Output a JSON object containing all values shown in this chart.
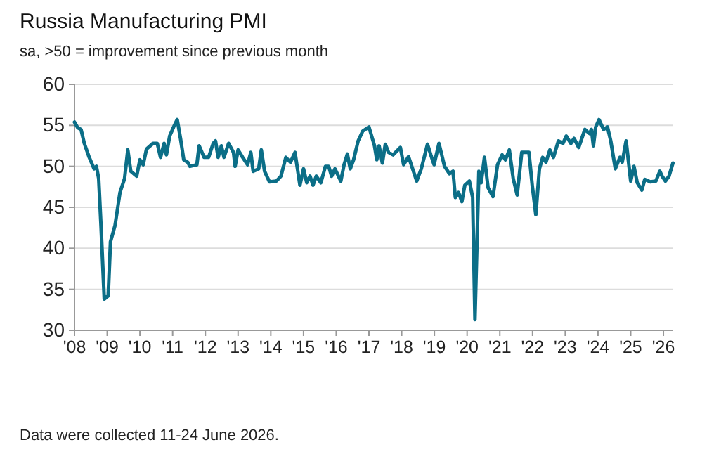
{
  "chart_data": {
    "type": "line",
    "title": "Russia Manufacturing PMI",
    "subtitle": "sa, >50 = improvement since previous month",
    "annotations": [
      "Data were collected 11-24 June 2026."
    ],
    "x": [
      2008.0,
      2008.1,
      2008.2,
      2008.3,
      2008.45,
      2008.6,
      2008.67,
      2008.74,
      2008.81,
      2008.91,
      2009.03,
      2009.1,
      2009.24,
      2009.39,
      2009.53,
      2009.63,
      2009.72,
      2009.9,
      2010.0,
      2010.1,
      2010.2,
      2010.4,
      2010.53,
      2010.63,
      2010.74,
      2010.81,
      2010.91,
      2011.03,
      2011.14,
      2011.24,
      2011.34,
      2011.46,
      2011.53,
      2011.74,
      2011.81,
      2011.96,
      2012.1,
      2012.24,
      2012.31,
      2012.39,
      2012.49,
      2012.57,
      2012.71,
      2012.86,
      2012.91,
      2013.0,
      2013.14,
      2013.29,
      2013.39,
      2013.46,
      2013.63,
      2013.71,
      2013.81,
      2013.96,
      2014.17,
      2014.31,
      2014.46,
      2014.6,
      2014.74,
      2014.89,
      2015.0,
      2015.1,
      2015.2,
      2015.29,
      2015.39,
      2015.53,
      2015.67,
      2015.77,
      2015.86,
      2015.96,
      2016.14,
      2016.24,
      2016.34,
      2016.43,
      2016.53,
      2016.67,
      2016.81,
      2017.0,
      2017.17,
      2017.24,
      2017.31,
      2017.41,
      2017.5,
      2017.6,
      2017.74,
      2017.96,
      2018.06,
      2018.21,
      2018.31,
      2018.46,
      2018.6,
      2018.79,
      2018.89,
      2018.99,
      2019.14,
      2019.31,
      2019.46,
      2019.57,
      2019.64,
      2019.74,
      2019.84,
      2019.93,
      2020.07,
      2020.17,
      2020.24,
      2020.36,
      2020.43,
      2020.53,
      2020.64,
      2020.79,
      2020.93,
      2021.07,
      2021.17,
      2021.29,
      2021.41,
      2021.53,
      2021.67,
      2021.89,
      2021.99,
      2022.1,
      2022.21,
      2022.31,
      2022.41,
      2022.53,
      2022.64,
      2022.79,
      2022.93,
      2023.03,
      2023.17,
      2023.27,
      2023.41,
      2023.6,
      2023.74,
      2023.8,
      2023.86,
      2023.93,
      2024.03,
      2024.17,
      2024.29,
      2024.39,
      2024.53,
      2024.67,
      2024.74,
      2024.86,
      2025.0,
      2025.1,
      2025.2,
      2025.34,
      2025.43,
      2025.6,
      2025.77,
      2025.89,
      2025.96,
      2026.06,
      2026.17,
      2026.29
    ],
    "series": [
      {
        "color": "#0b6e87",
        "values": [
          55.4,
          54.7,
          54.5,
          52.8,
          51.1,
          49.7,
          50,
          48.5,
          42.8,
          33.8,
          34.2,
          40.8,
          42.8,
          46.8,
          48.5,
          52,
          49.4,
          48.8,
          50.8,
          50.2,
          52.1,
          52.8,
          52.8,
          51.1,
          52.8,
          51.4,
          53.7,
          54.8,
          55.7,
          53.4,
          50.8,
          50.5,
          50,
          50.2,
          52.5,
          51.1,
          51.1,
          52.8,
          53.1,
          51.1,
          52.5,
          51.1,
          52.8,
          51.7,
          50,
          52,
          51.1,
          50.2,
          51.7,
          49.4,
          49.7,
          52,
          49.4,
          48.1,
          48.2,
          48.8,
          51.1,
          50.5,
          51.7,
          47.7,
          49.7,
          48,
          48.8,
          47.7,
          48.8,
          48,
          50,
          50,
          48.8,
          49.7,
          48.2,
          50.2,
          51.5,
          49.7,
          50.8,
          53.1,
          54.3,
          54.8,
          52.5,
          50.8,
          52.5,
          50.4,
          52.7,
          51.7,
          51.4,
          52.3,
          50.2,
          51.2,
          50,
          48.2,
          49.7,
          52.7,
          51.4,
          50.2,
          52.8,
          50,
          49.1,
          49.4,
          46.2,
          46.8,
          45.7,
          47.7,
          48.2,
          46.2,
          31.3,
          49.4,
          48,
          51.1,
          47.4,
          46.3,
          50.2,
          51.4,
          50.8,
          52,
          48.5,
          46.5,
          51.7,
          51.7,
          47.7,
          44.1,
          49.7,
          51.1,
          50.5,
          52,
          51.1,
          53.1,
          52.8,
          53.7,
          52.8,
          53.4,
          52.3,
          54.5,
          54,
          54.5,
          52.5,
          54.8,
          55.7,
          54.5,
          54.8,
          53.1,
          49.7,
          51.1,
          50.5,
          53.1,
          48.2,
          50,
          48,
          47.1,
          48.4,
          48.1,
          48.2,
          49.4,
          48.8,
          48.2,
          48.8,
          50.4
        ]
      }
    ],
    "xlim": [
      2008,
      2026.3
    ],
    "xticks": [
      {
        "value": 2008,
        "label": "'08"
      },
      {
        "value": 2009,
        "label": "'09"
      },
      {
        "value": 2010,
        "label": "'10"
      },
      {
        "value": 2011,
        "label": "'11"
      },
      {
        "value": 2012,
        "label": "'12"
      },
      {
        "value": 2013,
        "label": "'13"
      },
      {
        "value": 2014,
        "label": "'14"
      },
      {
        "value": 2015,
        "label": "'15"
      },
      {
        "value": 2016,
        "label": "'16"
      },
      {
        "value": 2017,
        "label": "'17"
      },
      {
        "value": 2018,
        "label": "'18"
      },
      {
        "value": 2019,
        "label": "'19"
      },
      {
        "value": 2020,
        "label": "'20"
      },
      {
        "value": 2021,
        "label": "'21"
      },
      {
        "value": 2022,
        "label": "'22"
      },
      {
        "value": 2023,
        "label": "'23"
      },
      {
        "value": 2024,
        "label": "'24"
      },
      {
        "value": 2025,
        "label": "'25"
      },
      {
        "value": 2026,
        "label": "'26"
      }
    ],
    "ylim": [
      30,
      60
    ],
    "yticks": [
      30,
      35,
      40,
      45,
      50,
      55,
      60
    ],
    "grid": "y"
  }
}
